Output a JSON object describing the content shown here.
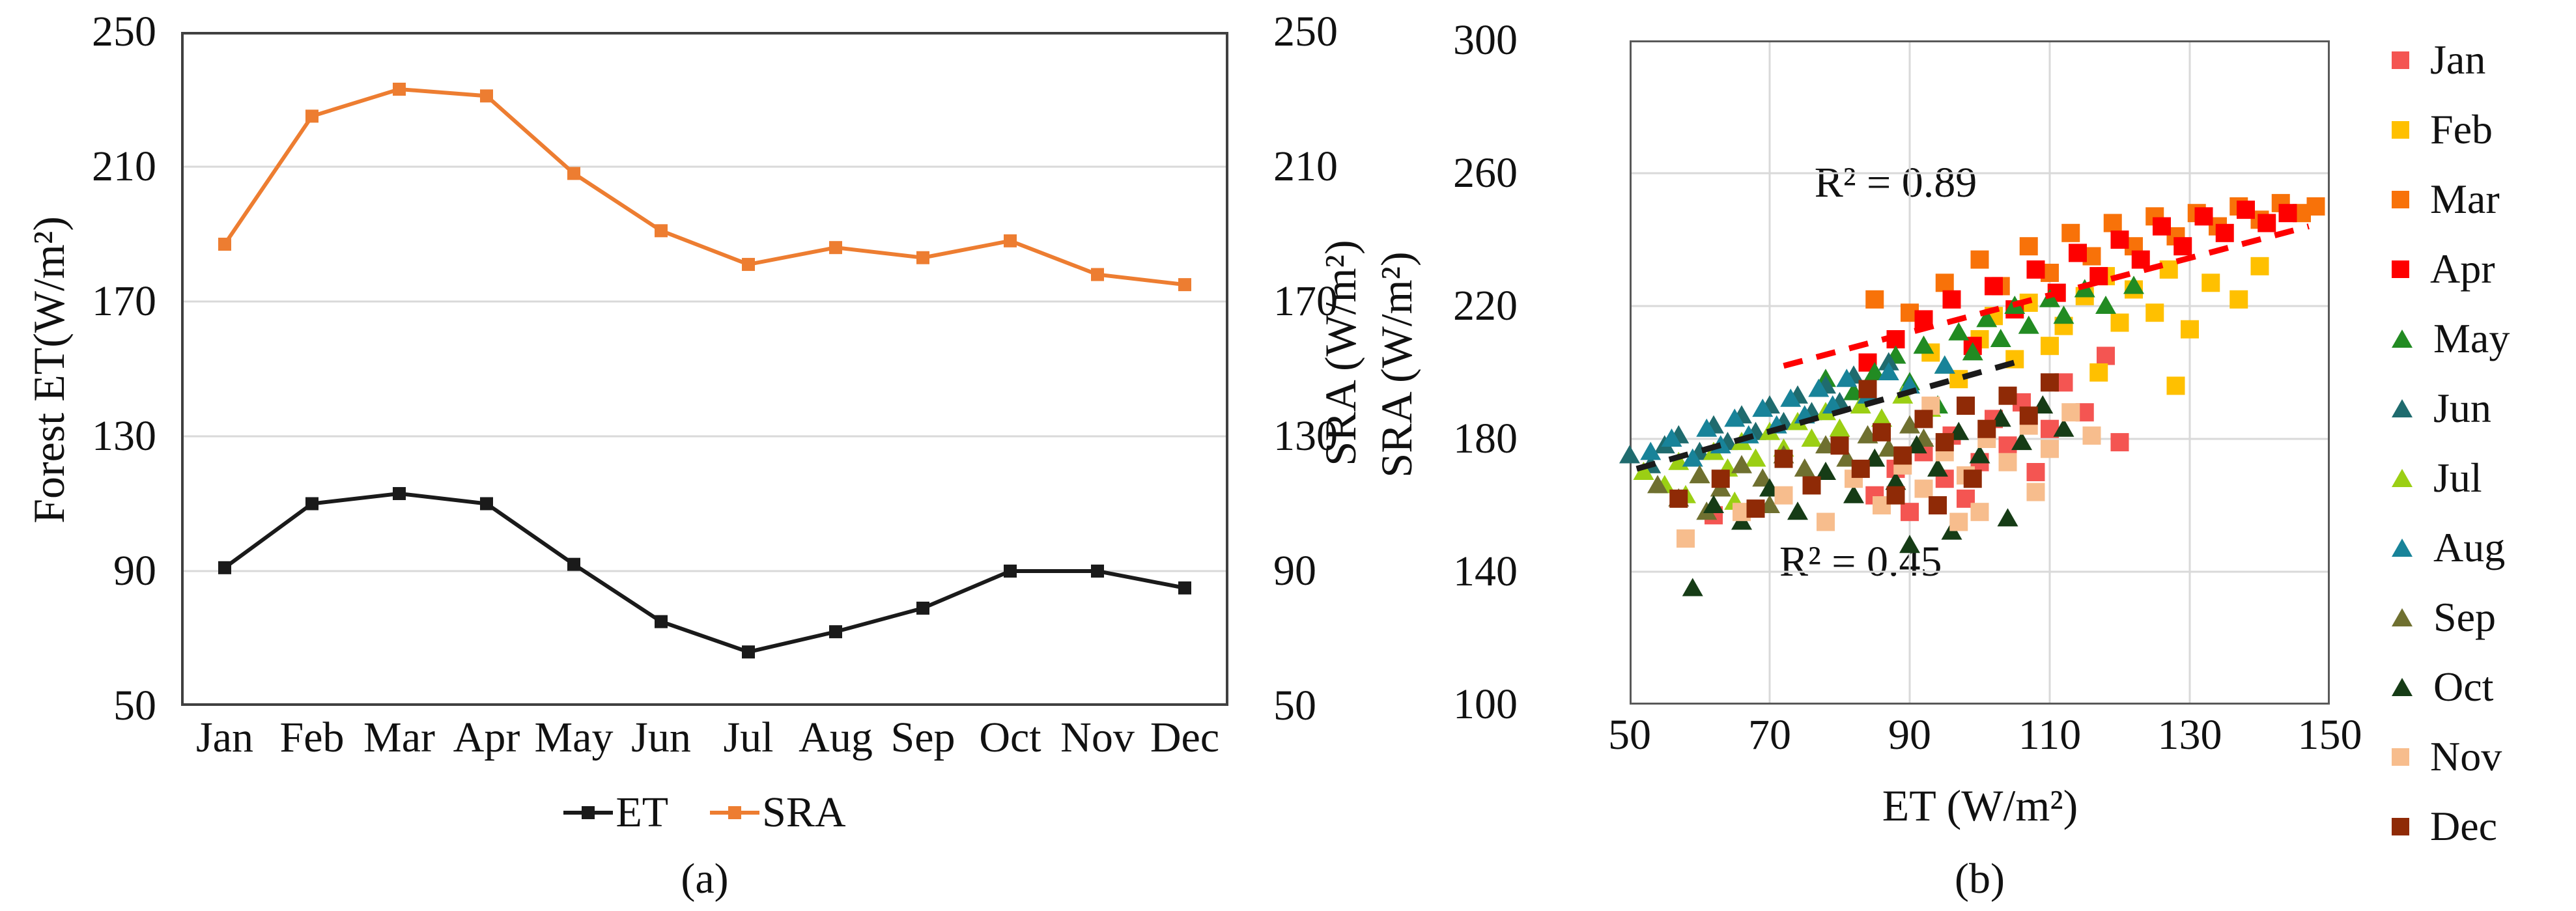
{
  "figure": {
    "background": "#ffffff",
    "text_color": "#111111",
    "grid_color": "#d9d9d9",
    "border_color": "#404040"
  },
  "chart_data": [
    {
      "id": "a",
      "type": "line",
      "caption": "(a)",
      "ylabel_left": "Forest ET(W/m²)",
      "ylabel_right": "SRA (W/m²)",
      "ylim": [
        50,
        250
      ],
      "yticks": [
        50,
        90,
        130,
        170,
        210,
        250
      ],
      "grid": "horizontal",
      "legend_position": "bottom",
      "categories": [
        "Jan",
        "Feb",
        "Mar",
        "Apr",
        "May",
        "Jun",
        "Jul",
        "Aug",
        "Sep",
        "Oct",
        "Nov",
        "Dec"
      ],
      "series": [
        {
          "name": "ET",
          "color": "#1a1a1a",
          "marker": "square",
          "values": [
            91,
            110,
            113,
            110,
            92,
            75,
            66,
            72,
            79,
            90,
            90,
            85
          ]
        },
        {
          "name": "SRA",
          "color": "#ed7d31",
          "marker": "square",
          "values": [
            187,
            225,
            233,
            231,
            208,
            191,
            181,
            186,
            183,
            188,
            178,
            175
          ]
        }
      ]
    },
    {
      "id": "b",
      "type": "scatter",
      "caption": "(b)",
      "xlabel": "ET (W/m²)",
      "ylabel": "SRA (W/m²)",
      "xlim": [
        50,
        150
      ],
      "ylim": [
        100,
        300
      ],
      "xticks": [
        50,
        70,
        90,
        110,
        130,
        150
      ],
      "yticks": [
        100,
        140,
        180,
        220,
        260,
        300
      ],
      "grid": "both",
      "legend_position": "right",
      "annotations": [
        {
          "text": "R² = 0.89",
          "x": 88,
          "y": 257
        },
        {
          "text": "R² = 0.45",
          "x": 83,
          "y": 143
        }
      ],
      "trendlines": [
        {
          "r2": 0.89,
          "color": "#fe0000",
          "style": "dashed",
          "x1": 72,
          "y1": 202,
          "x2": 147,
          "y2": 244
        },
        {
          "r2": 0.45,
          "color": "#1a1a1a",
          "style": "dashed",
          "x1": 51,
          "y1": 171,
          "x2": 105,
          "y2": 203
        }
      ],
      "series": [
        {
          "name": "Jan",
          "color": "#f45552",
          "marker": "square",
          "points": [
            [
              62,
              157
            ],
            [
              85,
              163
            ],
            [
              88,
              171
            ],
            [
              90,
              158
            ],
            [
              92,
              176
            ],
            [
              95,
              168
            ],
            [
              96,
              181
            ],
            [
              98,
              162
            ],
            [
              100,
              173
            ],
            [
              102,
              186
            ],
            [
              104,
              178
            ],
            [
              106,
              191
            ],
            [
              108,
              170
            ],
            [
              110,
              183
            ],
            [
              112,
              197
            ],
            [
              115,
              188
            ],
            [
              118,
              205
            ],
            [
              120,
              179
            ]
          ]
        },
        {
          "name": "Feb",
          "color": "#ffc000",
          "marker": "square",
          "points": [
            [
              93,
              206
            ],
            [
              97,
              198
            ],
            [
              100,
              210
            ],
            [
              102,
              217
            ],
            [
              105,
              204
            ],
            [
              107,
              221
            ],
            [
              110,
              208
            ],
            [
              112,
              214
            ],
            [
              115,
              223
            ],
            [
              117,
              200
            ],
            [
              118,
              229
            ],
            [
              120,
              215
            ],
            [
              122,
              225
            ],
            [
              125,
              218
            ],
            [
              127,
              231
            ],
            [
              130,
              213
            ],
            [
              133,
              227
            ],
            [
              137,
              222
            ],
            [
              128,
              196
            ],
            [
              140,
              232
            ]
          ]
        },
        {
          "name": "Mar",
          "color": "#f87209",
          "marker": "square",
          "points": [
            [
              85,
              222
            ],
            [
              90,
              218
            ],
            [
              95,
              227
            ],
            [
              100,
              234
            ],
            [
              103,
              226
            ],
            [
              107,
              238
            ],
            [
              110,
              230
            ],
            [
              113,
              242
            ],
            [
              116,
              235
            ],
            [
              119,
              245
            ],
            [
              122,
              238
            ],
            [
              125,
              247
            ],
            [
              128,
              241
            ],
            [
              131,
              248
            ],
            [
              134,
              244
            ],
            [
              137,
              250
            ],
            [
              140,
              246
            ],
            [
              143,
              251
            ],
            [
              146,
              248
            ],
            [
              148,
              250
            ]
          ]
        },
        {
          "name": "Apr",
          "color": "#fe0000",
          "marker": "square",
          "points": [
            [
              84,
              203
            ],
            [
              88,
              210
            ],
            [
              92,
              216
            ],
            [
              96,
              222
            ],
            [
              99,
              208
            ],
            [
              102,
              226
            ],
            [
              105,
              219
            ],
            [
              108,
              231
            ],
            [
              111,
              224
            ],
            [
              114,
              236
            ],
            [
              117,
              229
            ],
            [
              120,
              240
            ],
            [
              123,
              234
            ],
            [
              126,
              244
            ],
            [
              129,
              238
            ],
            [
              132,
              247
            ],
            [
              135,
              242
            ],
            [
              138,
              249
            ],
            [
              141,
              245
            ],
            [
              144,
              248
            ]
          ]
        },
        {
          "name": "May",
          "color": "#228b22",
          "marker": "triangle",
          "points": [
            [
              78,
              198
            ],
            [
              82,
              194
            ],
            [
              85,
              200
            ],
            [
              86,
              186
            ],
            [
              88,
              205
            ],
            [
              90,
              197
            ],
            [
              92,
              208
            ],
            [
              94,
              190
            ],
            [
              95,
              202
            ],
            [
              97,
              212
            ],
            [
              99,
              206
            ],
            [
              101,
              216
            ],
            [
              103,
              210
            ],
            [
              105,
              220
            ],
            [
              107,
              214
            ],
            [
              110,
              222
            ],
            [
              112,
              217
            ],
            [
              115,
              225
            ],
            [
              118,
              220
            ],
            [
              122,
              226
            ]
          ]
        },
        {
          "name": "Jun",
          "color": "#1f6b6e",
          "marker": "triangle",
          "points": [
            [
              50,
              175
            ],
            [
              53,
              172
            ],
            [
              55,
              178
            ],
            [
              57,
              181
            ],
            [
              60,
              176
            ],
            [
              62,
              184
            ],
            [
              64,
              179
            ],
            [
              66,
              187
            ],
            [
              68,
              182
            ],
            [
              70,
              190
            ],
            [
              72,
              185
            ],
            [
              74,
              193
            ],
            [
              76,
              188
            ],
            [
              78,
              196
            ],
            [
              80,
              191
            ],
            [
              82,
              199
            ],
            [
              84,
              194
            ],
            [
              87,
              203
            ]
          ]
        },
        {
          "name": "Jul",
          "color": "#9bcf14",
          "marker": "triangle",
          "points": [
            [
              52,
              170
            ],
            [
              55,
              166
            ],
            [
              57,
              173
            ],
            [
              58,
              163
            ],
            [
              60,
              169
            ],
            [
              62,
              176
            ],
            [
              64,
              171
            ],
            [
              65,
              161
            ],
            [
              66,
              179
            ],
            [
              68,
              174
            ],
            [
              70,
              182
            ],
            [
              72,
              177
            ],
            [
              74,
              185
            ],
            [
              76,
              180
            ],
            [
              78,
              188
            ],
            [
              80,
              183
            ],
            [
              83,
              190
            ],
            [
              86,
              186
            ],
            [
              89,
              193
            ],
            [
              93,
              189
            ]
          ]
        },
        {
          "name": "Aug",
          "color": "#188399",
          "marker": "triangle",
          "points": [
            [
              53,
              176
            ],
            [
              56,
              180
            ],
            [
              59,
              174
            ],
            [
              61,
              183
            ],
            [
              63,
              178
            ],
            [
              65,
              186
            ],
            [
              67,
              181
            ],
            [
              69,
              189
            ],
            [
              71,
              184
            ],
            [
              73,
              192
            ],
            [
              75,
              187
            ],
            [
              77,
              195
            ],
            [
              79,
              190
            ],
            [
              81,
              198
            ],
            [
              84,
              193
            ],
            [
              87,
              200
            ],
            [
              90,
              196
            ],
            [
              95,
              202
            ]
          ]
        },
        {
          "name": "Sep",
          "color": "#6f7030",
          "marker": "triangle",
          "points": [
            [
              54,
              166
            ],
            [
              57,
              162
            ],
            [
              60,
              169
            ],
            [
              61,
              158
            ],
            [
              63,
              165
            ],
            [
              66,
              172
            ],
            [
              69,
              168
            ],
            [
              70,
              160
            ],
            [
              72,
              175
            ],
            [
              75,
              171
            ],
            [
              78,
              178
            ],
            [
              81,
              174
            ],
            [
              84,
              181
            ],
            [
              87,
              177
            ],
            [
              90,
              184
            ],
            [
              92,
              180
            ]
          ]
        },
        {
          "name": "Oct",
          "color": "#163c16",
          "marker": "triangle",
          "points": [
            [
              59,
              135
            ],
            [
              62,
              160
            ],
            [
              66,
              155
            ],
            [
              70,
              165
            ],
            [
              74,
              158
            ],
            [
              78,
              170
            ],
            [
              82,
              163
            ],
            [
              85,
              174
            ],
            [
              88,
              167
            ],
            [
              90,
              148
            ],
            [
              91,
              178
            ],
            [
              94,
              171
            ],
            [
              96,
              152
            ],
            [
              97,
              182
            ],
            [
              100,
              175
            ],
            [
              103,
              186
            ],
            [
              104,
              156
            ],
            [
              106,
              179
            ],
            [
              109,
              190
            ],
            [
              112,
              183
            ]
          ]
        },
        {
          "name": "Nov",
          "color": "#f7bd8d",
          "marker": "square",
          "points": [
            [
              58,
              150
            ],
            [
              66,
              158
            ],
            [
              72,
              163
            ],
            [
              78,
              155
            ],
            [
              82,
              168
            ],
            [
              86,
              160
            ],
            [
              89,
              172
            ],
            [
              92,
              165
            ],
            [
              93,
              190
            ],
            [
              95,
              176
            ],
            [
              97,
              155
            ],
            [
              98,
              169
            ],
            [
              100,
              158
            ],
            [
              101,
              180
            ],
            [
              104,
              173
            ],
            [
              107,
              184
            ],
            [
              108,
              164
            ],
            [
              110,
              177
            ],
            [
              113,
              188
            ],
            [
              116,
              181
            ]
          ]
        },
        {
          "name": "Dec",
          "color": "#8f2a06",
          "marker": "square",
          "points": [
            [
              57,
              162
            ],
            [
              63,
              168
            ],
            [
              68,
              159
            ],
            [
              72,
              174
            ],
            [
              76,
              166
            ],
            [
              80,
              178
            ],
            [
              83,
              171
            ],
            [
              84,
              195
            ],
            [
              86,
              182
            ],
            [
              88,
              163
            ],
            [
              89,
              175
            ],
            [
              92,
              186
            ],
            [
              94,
              160
            ],
            [
              95,
              179
            ],
            [
              98,
              190
            ],
            [
              99,
              168
            ],
            [
              101,
              183
            ],
            [
              104,
              193
            ],
            [
              107,
              187
            ],
            [
              110,
              197
            ]
          ]
        }
      ]
    }
  ]
}
